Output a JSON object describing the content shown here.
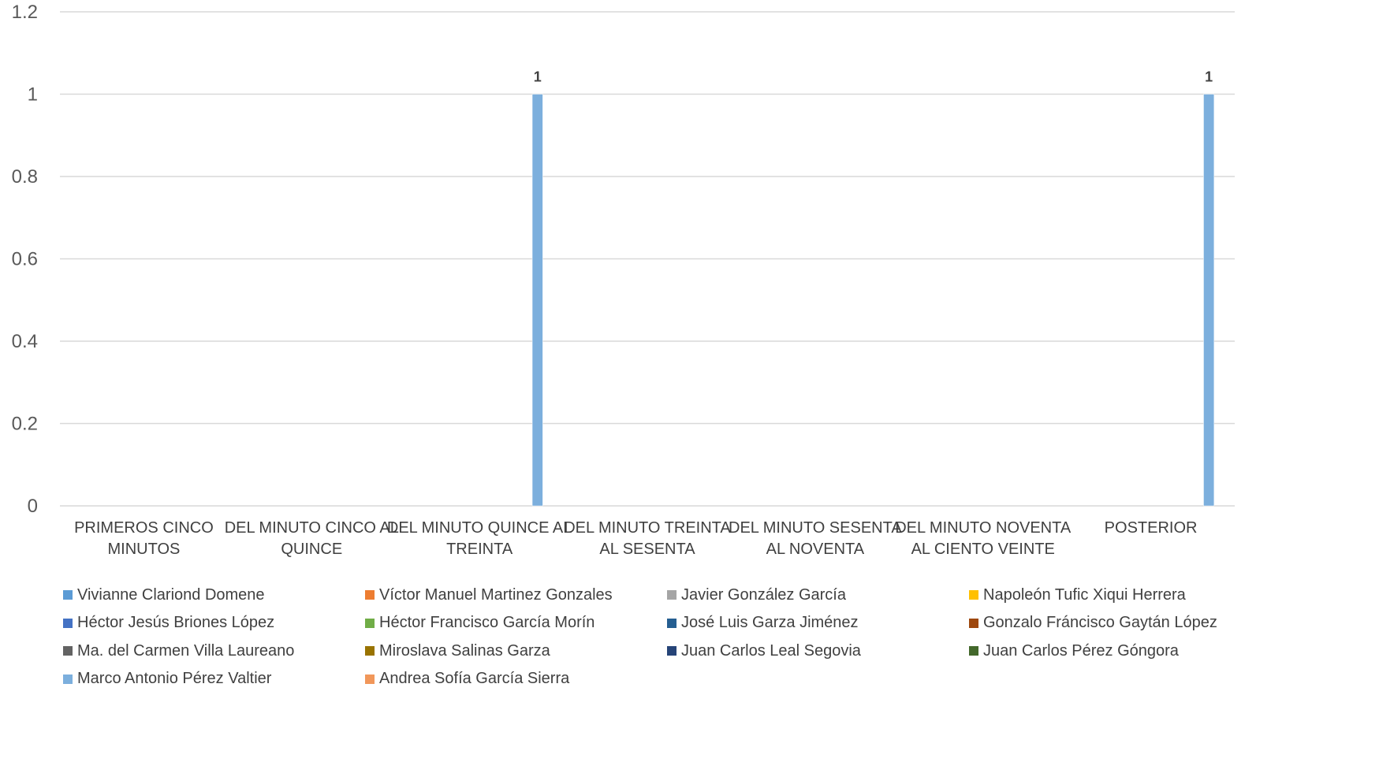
{
  "chart_data": {
    "type": "bar",
    "title": "",
    "xlabel": "",
    "ylabel": "",
    "ylim": [
      0,
      1.2
    ],
    "yticks": [
      "0",
      "0.2",
      "0.4",
      "0.6",
      "0.8",
      "1",
      "1.2"
    ],
    "grid": true,
    "legend_position": "bottom",
    "categories": [
      [
        "PRIMEROS CINCO",
        "MINUTOS"
      ],
      [
        "DEL MINUTO CINCO AL",
        "QUINCE"
      ],
      [
        "DEL MINUTO QUINCE AL",
        "TREINTA"
      ],
      [
        "DEL MINUTO TREINTA",
        "AL SESENTA"
      ],
      [
        "DEL MINUTO SESENTA",
        "AL NOVENTA"
      ],
      [
        "DEL MINUTO NOVENTA",
        "AL CIENTO VEINTE"
      ],
      [
        "POSTERIOR"
      ]
    ],
    "series": [
      {
        "name": "Vivianne Clariond Domene",
        "color": "#5B9BD5",
        "values": [
          0,
          0,
          0,
          0,
          0,
          0,
          0
        ]
      },
      {
        "name": "Víctor Manuel Martinez Gonzales",
        "color": "#ED7D31",
        "values": [
          0,
          0,
          0,
          0,
          0,
          0,
          0
        ]
      },
      {
        "name": "Javier González García",
        "color": "#A5A5A5",
        "values": [
          0,
          0,
          0,
          0,
          0,
          0,
          0
        ]
      },
      {
        "name": "Napoleón Tufic Xiqui Herrera",
        "color": "#FFC000",
        "values": [
          0,
          0,
          0,
          0,
          0,
          0,
          0
        ]
      },
      {
        "name": "Héctor Jesús Briones López",
        "color": "#4472C4",
        "values": [
          0,
          0,
          0,
          0,
          0,
          0,
          0
        ]
      },
      {
        "name": "Héctor Francisco García Morín",
        "color": "#70AD47",
        "values": [
          0,
          0,
          0,
          0,
          0,
          0,
          0
        ]
      },
      {
        "name": "José Luis Garza Jiménez",
        "color": "#255E91",
        "values": [
          0,
          0,
          0,
          0,
          0,
          0,
          0
        ]
      },
      {
        "name": "Gonzalo Fráncisco Gaytán López",
        "color": "#9E480E",
        "values": [
          0,
          0,
          0,
          0,
          0,
          0,
          0
        ]
      },
      {
        "name": "Ma. del Carmen Villa Laureano",
        "color": "#636363",
        "values": [
          0,
          0,
          0,
          0,
          0,
          0,
          0
        ]
      },
      {
        "name": "Miroslava Salinas Garza",
        "color": "#997300",
        "values": [
          0,
          0,
          0,
          0,
          0,
          0,
          0
        ]
      },
      {
        "name": "Juan Carlos Leal Segovia",
        "color": "#264478",
        "values": [
          0,
          0,
          0,
          0,
          0,
          0,
          0
        ]
      },
      {
        "name": "Juan Carlos Pérez Góngora",
        "color": "#43682B",
        "values": [
          0,
          0,
          0,
          0,
          0,
          0,
          0
        ]
      },
      {
        "name": "Marco Antonio Pérez Valtier",
        "color": "#7CAFDD",
        "values": [
          0,
          0,
          1,
          0,
          0,
          0,
          1
        ]
      },
      {
        "name": "Andrea Sofía García Sierra",
        "color": "#F1975A",
        "values": [
          0,
          0,
          0,
          0,
          0,
          0,
          0
        ]
      }
    ],
    "data_labels": [
      {
        "category": 2,
        "series": 12,
        "text": "1"
      },
      {
        "category": 6,
        "series": 12,
        "text": "1"
      }
    ]
  }
}
